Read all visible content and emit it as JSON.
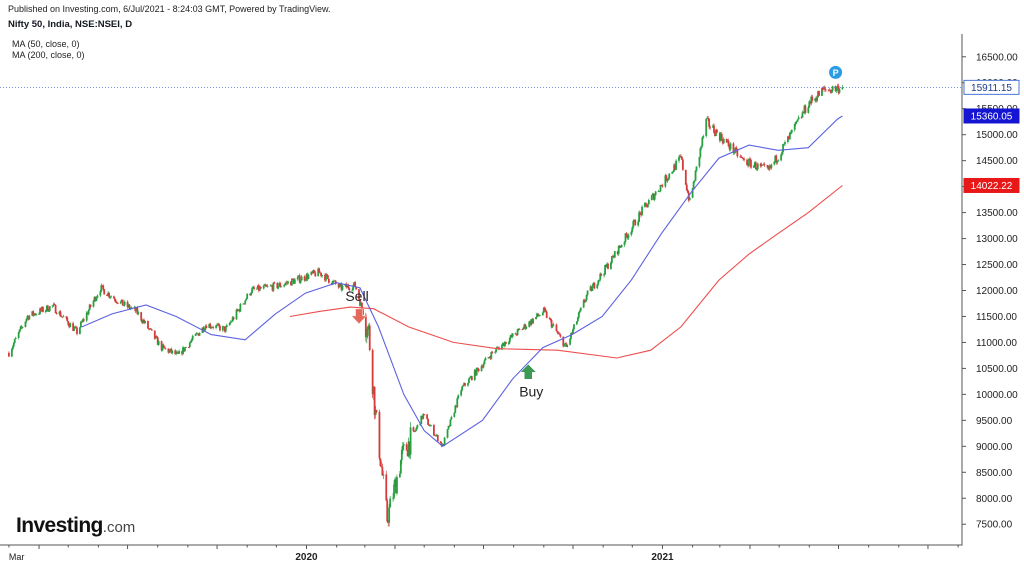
{
  "header": {
    "published": "Published on Investing.com, 6/Jul/2021 - 8:24:03 GMT, Powered by TradingView.",
    "symbol": "Nifty 50, India, NSE:NSEI, D",
    "indicators": [
      "MA (50, close, 0)",
      "MA (200, close, 0)"
    ]
  },
  "logo": {
    "brand": "Investing",
    "suffix": ".com"
  },
  "colors": {
    "up": "#26a041",
    "down": "#d63b3b",
    "ma50": "#5c62e0",
    "ma200": "#ee4d4d",
    "last_price_line": "#4a76d6",
    "sell_arrow": "#e36a5a",
    "buy_arrow": "#3d9a55",
    "p_badge": "#2c9be6"
  },
  "chart_data": {
    "type": "candlestick",
    "title": "Nifty 50, India, NSE:NSEI, D",
    "x_ticks": [
      "Mar",
      "2020",
      "2021"
    ],
    "y_ticks": [
      7500,
      8000,
      8500,
      9000,
      9500,
      10000,
      10500,
      11000,
      11500,
      12000,
      12500,
      13000,
      13500,
      14000,
      14500,
      15000,
      15500,
      16000,
      16500
    ],
    "ylim": [
      7100,
      16900
    ],
    "grid": false,
    "price_path": [
      [
        "2019-03-01",
        10800
      ],
      [
        "2019-03-20",
        11500
      ],
      [
        "2019-04-15",
        11700
      ],
      [
        "2019-05-10",
        11200
      ],
      [
        "2019-06-03",
        12050
      ],
      [
        "2019-06-25",
        11750
      ],
      [
        "2019-07-10",
        11600
      ],
      [
        "2019-08-05",
        10900
      ],
      [
        "2019-08-22",
        10750
      ],
      [
        "2019-09-20",
        11350
      ],
      [
        "2019-10-10",
        11250
      ],
      [
        "2019-11-05",
        12000
      ],
      [
        "2019-12-05",
        12100
      ],
      [
        "2020-01-14",
        12350
      ],
      [
        "2020-02-05",
        12050
      ],
      [
        "2020-02-20",
        12100
      ],
      [
        "2020-03-05",
        11200
      ],
      [
        "2020-03-12",
        9600
      ],
      [
        "2020-03-24",
        7600
      ],
      [
        "2020-04-08",
        8800
      ],
      [
        "2020-04-30",
        9600
      ],
      [
        "2020-05-20",
        9000
      ],
      [
        "2020-06-08",
        10100
      ],
      [
        "2020-07-10",
        10800
      ],
      [
        "2020-08-05",
        11200
      ],
      [
        "2020-09-01",
        11600
      ],
      [
        "2020-09-24",
        10900
      ],
      [
        "2020-10-15",
        11900
      ],
      [
        "2020-11-10",
        12600
      ],
      [
        "2020-12-10",
        13500
      ],
      [
        "2021-01-20",
        14550
      ],
      [
        "2021-01-29",
        13700
      ],
      [
        "2021-02-15",
        15250
      ],
      [
        "2021-03-25",
        14500
      ],
      [
        "2021-04-20",
        14300
      ],
      [
        "2021-05-10",
        14900
      ],
      [
        "2021-05-31",
        15600
      ],
      [
        "2021-06-15",
        15850
      ],
      [
        "2021-07-05",
        15911.15
      ]
    ],
    "ma50_path": [
      [
        "2019-05-15",
        11300
      ],
      [
        "2019-06-15",
        11550
      ],
      [
        "2019-07-20",
        11720
      ],
      [
        "2019-08-20",
        11500
      ],
      [
        "2019-09-25",
        11150
      ],
      [
        "2019-10-30",
        11050
      ],
      [
        "2019-11-30",
        11550
      ],
      [
        "2019-12-31",
        11950
      ],
      [
        "2020-02-01",
        12150
      ],
      [
        "2020-02-25",
        12050
      ],
      [
        "2020-03-15",
        11300
      ],
      [
        "2020-04-10",
        10000
      ],
      [
        "2020-05-01",
        9300
      ],
      [
        "2020-05-20",
        9000
      ],
      [
        "2020-06-30",
        9500
      ],
      [
        "2020-07-31",
        10300
      ],
      [
        "2020-08-31",
        10900
      ],
      [
        "2020-09-30",
        11150
      ],
      [
        "2020-10-31",
        11500
      ],
      [
        "2020-11-30",
        12200
      ],
      [
        "2020-12-31",
        13100
      ],
      [
        "2021-01-31",
        13900
      ],
      [
        "2021-02-28",
        14550
      ],
      [
        "2021-03-31",
        14800
      ],
      [
        "2021-04-30",
        14700
      ],
      [
        "2021-05-31",
        14750
      ],
      [
        "2021-06-30",
        15300
      ],
      [
        "2021-07-05",
        15360.05
      ]
    ],
    "ma200_path": [
      [
        "2019-12-15",
        11500
      ],
      [
        "2020-01-15",
        11600
      ],
      [
        "2020-02-15",
        11680
      ],
      [
        "2020-03-10",
        11650
      ],
      [
        "2020-04-15",
        11300
      ],
      [
        "2020-05-31",
        11000
      ],
      [
        "2020-07-15",
        10880
      ],
      [
        "2020-09-15",
        10850
      ],
      [
        "2020-11-15",
        10700
      ],
      [
        "2020-12-20",
        10850
      ],
      [
        "2021-01-20",
        11300
      ],
      [
        "2021-02-28",
        12200
      ],
      [
        "2021-03-31",
        12700
      ],
      [
        "2021-04-30",
        13100
      ],
      [
        "2021-05-31",
        13500
      ],
      [
        "2021-07-05",
        14022.22
      ]
    ],
    "price_labels": [
      {
        "text": "15911.15",
        "kind": "last_price"
      },
      {
        "text": "15360.05",
        "kind": "ma50"
      },
      {
        "text": "14022.22",
        "kind": "ma200"
      }
    ],
    "annotations": [
      {
        "text": "Sell",
        "date": "2020-02-24",
        "value": 11550,
        "arrow": "down"
      },
      {
        "text": "Buy",
        "date": "2020-08-16",
        "value": 10580,
        "arrow": "up"
      }
    ],
    "badge": {
      "text": "P",
      "date": "2021-06-28",
      "value": 16200
    }
  }
}
